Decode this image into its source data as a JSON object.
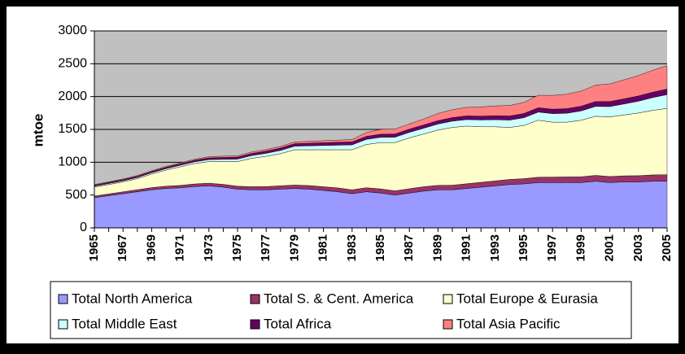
{
  "chart_data": {
    "type": "stacked-area",
    "y_label": "mtoe",
    "categories": [
      "1965",
      null,
      "1967",
      null,
      "1969",
      null,
      "1971",
      null,
      "1973",
      null,
      "1975",
      null,
      "1977",
      null,
      "1979",
      null,
      "1981",
      null,
      "1983",
      null,
      "1985",
      null,
      "1987",
      null,
      "1989",
      null,
      "1991",
      null,
      "1993",
      null,
      "1995",
      null,
      "1997",
      null,
      "1999",
      null,
      "2001",
      null,
      "2003",
      null,
      "2005"
    ],
    "ylim": [
      0,
      3000
    ],
    "yticks": [
      0,
      500,
      1000,
      1500,
      2000,
      2500,
      3000
    ],
    "grid": true,
    "legend_position": "bottom",
    "series": [
      {
        "name": "Total North America",
        "color": "#9999ff",
        "values": [
          460,
          490,
          520,
          550,
          580,
          600,
          610,
          630,
          640,
          620,
          590,
          580,
          580,
          590,
          600,
          590,
          570,
          550,
          520,
          550,
          530,
          500,
          530,
          560,
          580,
          580,
          600,
          620,
          640,
          660,
          670,
          690,
          690,
          690,
          690,
          710,
          690,
          700,
          700,
          710,
          710
        ]
      },
      {
        "name": "Total S. & Cent. America",
        "color": "#993366",
        "values": [
          25,
          27,
          29,
          31,
          33,
          35,
          37,
          39,
          41,
          43,
          45,
          47,
          49,
          51,
          53,
          55,
          57,
          59,
          60,
          62,
          63,
          64,
          66,
          67,
          68,
          70,
          72,
          74,
          76,
          78,
          80,
          82,
          84,
          86,
          88,
          90,
          92,
          93,
          95,
          97,
          100
        ]
      },
      {
        "name": "Total Europe & Eurasia",
        "color": "#ffffcc",
        "values": [
          135,
          143,
          151,
          169,
          207,
          245,
          283,
          311,
          329,
          347,
          375,
          433,
          461,
          489,
          537,
          545,
          563,
          581,
          610,
          658,
          707,
          736,
          774,
          803,
          842,
          880,
          878,
          846,
          824,
          792,
          810,
          868,
          836,
          834,
          862,
          900,
          908,
          927,
          955,
          983,
          1010
        ]
      },
      {
        "name": "Total Middle East",
        "color": "#ccffff",
        "values": [
          15,
          16,
          17,
          18,
          20,
          22,
          24,
          26,
          30,
          34,
          38,
          42,
          46,
          50,
          55,
          60,
          65,
          70,
          75,
          78,
          80,
          82,
          85,
          88,
          92,
          96,
          100,
          104,
          108,
          112,
          118,
          124,
          130,
          136,
          142,
          150,
          158,
          168,
          180,
          195,
          210
        ]
      },
      {
        "name": "Total Africa",
        "color": "#660066",
        "values": [
          15,
          16,
          17,
          18,
          19,
          20,
          22,
          24,
          26,
          28,
          30,
          32,
          34,
          36,
          38,
          40,
          42,
          44,
          45,
          46,
          47,
          48,
          49,
          50,
          52,
          54,
          56,
          58,
          60,
          62,
          64,
          66,
          68,
          70,
          72,
          74,
          76,
          78,
          80,
          82,
          85
        ]
      },
      {
        "name": "Total Asia Pacific",
        "color": "#ff8080",
        "values": [
          10,
          10,
          12,
          12,
          12,
          14,
          14,
          16,
          18,
          20,
          20,
          22,
          24,
          24,
          26,
          28,
          30,
          32,
          35,
          60,
          73,
          75,
          80,
          90,
          110,
          120,
          130,
          140,
          150,
          160,
          170,
          190,
          210,
          220,
          230,
          250,
          270,
          290,
          310,
          335,
          355
        ]
      }
    ]
  }
}
